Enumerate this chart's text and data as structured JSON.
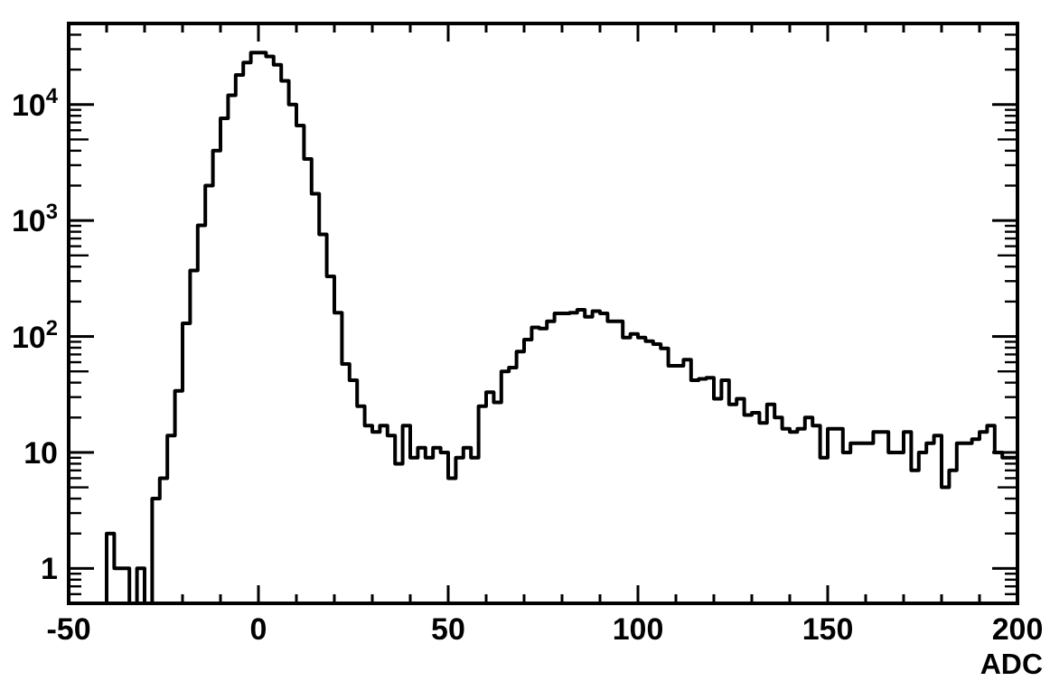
{
  "chart_data": {
    "type": "histogram",
    "xlabel": "ADC",
    "log": "y",
    "grid": false,
    "color": "#000000",
    "bins": [
      -50,
      -48,
      -46,
      -44,
      -42,
      -40,
      -38,
      -36,
      -34,
      -32,
      -30,
      -28,
      -26,
      -24,
      -22,
      -20,
      -18,
      -16,
      -14,
      -12,
      -10,
      -8,
      -6,
      -4,
      -2,
      0,
      2,
      4,
      6,
      8,
      10,
      12,
      14,
      16,
      18,
      20,
      22,
      24,
      26,
      28,
      30,
      32,
      34,
      36,
      38,
      40,
      42,
      44,
      46,
      48,
      50,
      52,
      54,
      56,
      58,
      60,
      62,
      64,
      66,
      68,
      70,
      72,
      74,
      76,
      78,
      80,
      82,
      84,
      86,
      88,
      90,
      92,
      94,
      96,
      98,
      100,
      102,
      104,
      106,
      108,
      110,
      112,
      114,
      116,
      118,
      120,
      122,
      124,
      126,
      128,
      130,
      132,
      134,
      136,
      138,
      140,
      142,
      144,
      146,
      148,
      150,
      152,
      154,
      156,
      158,
      160,
      162,
      164,
      166,
      168,
      170,
      172,
      174,
      176,
      178,
      180,
      182,
      184,
      186,
      188,
      190,
      192,
      194,
      196,
      198,
      200
    ],
    "values": [
      null,
      null,
      null,
      null,
      null,
      2,
      1,
      1,
      null,
      1,
      null,
      4,
      6,
      14,
      34,
      130,
      370,
      910,
      2000,
      4000,
      7600,
      12000,
      18000,
      23000,
      28000,
      28000,
      26000,
      22000,
      16000,
      10000,
      6600,
      3400,
      1700,
      760,
      330,
      160,
      58,
      42,
      25,
      17,
      15,
      17,
      14,
      8,
      17,
      9,
      11,
      9,
      11,
      10,
      6,
      9,
      11,
      9,
      25,
      33,
      27,
      50,
      54,
      74,
      94,
      120,
      117,
      135,
      158,
      158,
      160,
      170,
      148,
      165,
      158,
      135,
      135,
      98,
      105,
      98,
      91,
      86,
      79,
      56,
      56,
      63,
      42,
      43,
      44,
      29,
      42,
      26,
      29,
      21,
      22,
      18,
      26,
      20,
      16,
      15,
      16,
      20,
      17,
      9,
      16,
      16,
      10,
      12,
      12,
      12,
      15,
      15,
      10,
      10,
      15,
      7,
      10,
      12,
      14,
      5,
      7,
      12,
      12,
      13,
      15,
      17,
      10,
      9,
      9
    ],
    "xlim": [
      -50,
      200
    ],
    "xticks": [
      -50,
      {
        "value": -40,
        "label": null
      },
      {
        "value": -30,
        "label": null
      },
      {
        "value": -20,
        "label": null
      },
      {
        "value": -10,
        "label": null
      },
      0,
      {
        "value": 10,
        "label": null
      },
      {
        "value": 20,
        "label": null
      },
      {
        "value": 30,
        "label": null
      },
      {
        "value": 40,
        "label": null
      },
      50,
      {
        "value": 60,
        "label": null
      },
      {
        "value": 70,
        "label": null
      },
      {
        "value": 80,
        "label": null
      },
      {
        "value": 90,
        "label": null
      },
      100,
      {
        "value": 110,
        "label": null
      },
      {
        "value": 120,
        "label": null
      },
      {
        "value": 130,
        "label": null
      },
      {
        "value": 140,
        "label": null
      },
      150,
      {
        "value": 160,
        "label": null
      },
      {
        "value": 170,
        "label": null
      },
      {
        "value": 180,
        "label": null
      },
      {
        "value": 190,
        "label": null
      },
      200
    ],
    "ylim": [
      0.5,
      50000
    ],
    "yticks": [
      1,
      10,
      {
        "value": 100,
        "label": "10$^{2}$"
      },
      {
        "value": 1000,
        "label": "10$^{3}$"
      },
      {
        "value": 10000,
        "label": "10$^{4}$"
      }
    ]
  }
}
